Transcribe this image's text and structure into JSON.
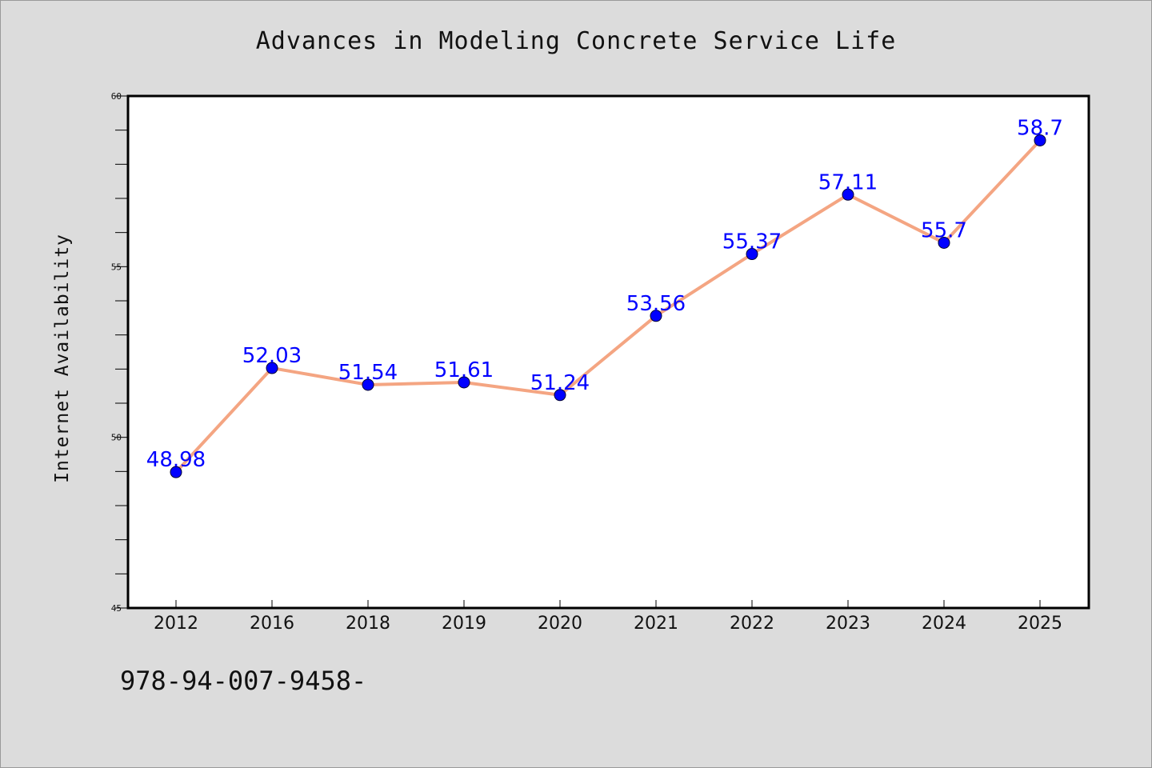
{
  "title": "Advances in Modeling Concrete Service Life",
  "footer_note": "978-94-007-9458-",
  "colors": {
    "background": "#dcdcdc",
    "plot_background": "#ffffff",
    "line": "#f4a582",
    "marker": "#0000ff",
    "data_label": "#0000ff"
  },
  "chart_data": {
    "type": "line",
    "title": "Advances in Modeling Concrete Service Life",
    "xlabel": "",
    "ylabel": "Internet Availability",
    "categories": [
      "2012",
      "2016",
      "2018",
      "2019",
      "2020",
      "2021",
      "2022",
      "2023",
      "2024",
      "2025"
    ],
    "values": [
      48.98,
      52.03,
      51.54,
      51.61,
      51.24,
      53.56,
      55.37,
      57.11,
      55.7,
      58.7
    ],
    "value_labels": [
      "48.98",
      "52.03",
      "51.54",
      "51.61",
      "51.24",
      "53.56",
      "55.37",
      "57.11",
      "55.7",
      "58.7"
    ],
    "ylim": [
      45,
      60
    ],
    "y_major_ticks": [
      45,
      50,
      55,
      60
    ],
    "y_minor_step": 1,
    "grid": false,
    "legend": "none"
  }
}
